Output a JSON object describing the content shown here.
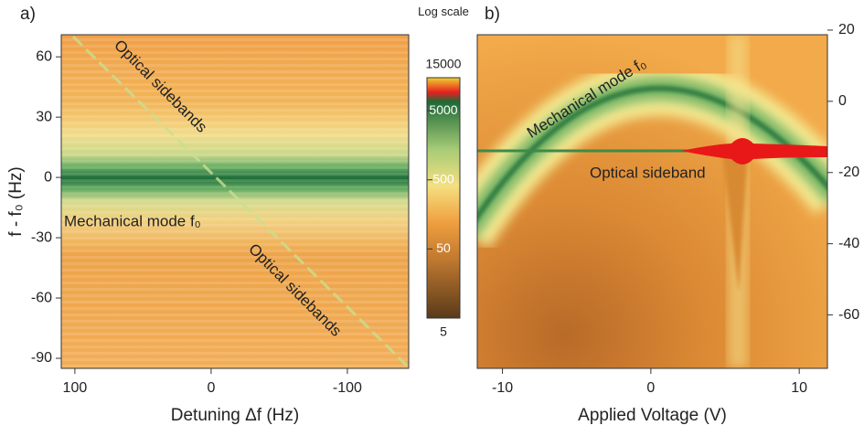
{
  "chart_data": [
    {
      "type": "heatmap",
      "panel_label": "a)",
      "x_label": "Detuning Δf (Hz)",
      "y_label": "f - f₀ (Hz)",
      "xlim": [
        110,
        -145
      ],
      "xticks": [
        100,
        0,
        -100
      ],
      "ylim": [
        -95,
        71
      ],
      "yticks": [
        -90,
        -60,
        -30,
        0,
        30,
        60
      ],
      "y_axis_side": "left",
      "annotations": [
        "Optical sidebands",
        "Optical sidebands",
        "Mechanical mode f₀"
      ],
      "colorbar": {
        "title": "Log scale",
        "log": true,
        "lim": [
          5,
          15000
        ],
        "ticks": [
          5,
          50,
          500,
          5000,
          15000
        ]
      }
    },
    {
      "type": "heatmap",
      "panel_label": "b)",
      "x_label": "Applied Voltage (V)",
      "xlim": [
        -11.7,
        11.9
      ],
      "xticks": [
        -10,
        0,
        10
      ],
      "ylim": [
        -75,
        18.7
      ],
      "yticks": [
        -60,
        -40,
        -20,
        0,
        20
      ],
      "y_axis_side": "right",
      "annotations": [
        "Mechanical mode f₀",
        "Optical sideband"
      ]
    }
  ]
}
